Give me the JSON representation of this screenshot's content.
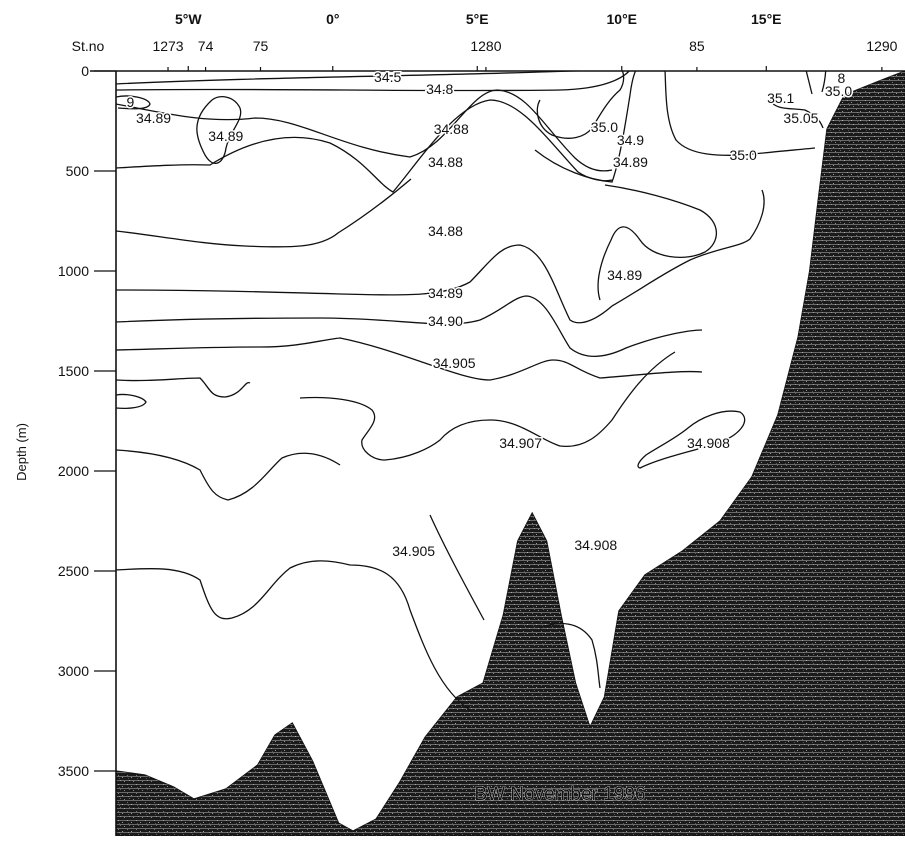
{
  "chart_data": {
    "type": "contour",
    "ylabel": "Depth (m)",
    "y_ticks": [
      0,
      500,
      1000,
      1500,
      2000,
      2500,
      3000,
      3500
    ],
    "y_range": [
      0,
      3800
    ],
    "x_ticks": [
      "5°W",
      "0°",
      "5°E",
      "10°E",
      "15°E"
    ],
    "x_tick_values": [
      -5,
      0,
      5,
      10,
      15
    ],
    "x_range": [
      -7.5,
      19.8
    ],
    "station_header": "St.no",
    "stations": [
      {
        "label": "1273",
        "lon": -5.7
      },
      {
        "label": "74",
        "lon": -4.4
      },
      {
        "label": "75",
        "lon": -2.5
      },
      {
        "label": "1280",
        "lon": 5.3
      },
      {
        "label": "85",
        "lon": 12.6
      },
      {
        "label": "1290",
        "lon": 19.0
      }
    ],
    "contour_labels": [
      {
        "text": "34.5",
        "lon": 1.9,
        "depth": 30
      },
      {
        "text": "34.8",
        "lon": 3.7,
        "depth": 90
      },
      {
        "text": "9",
        "lon": -7.0,
        "depth": 155
      },
      {
        "text": "34.89",
        "lon": -6.2,
        "depth": 235
      },
      {
        "text": "34.89",
        "lon": -3.7,
        "depth": 325
      },
      {
        "text": "34.88",
        "lon": 4.1,
        "depth": 290
      },
      {
        "text": "34.88",
        "lon": 3.9,
        "depth": 455
      },
      {
        "text": "35.0",
        "lon": 9.4,
        "depth": 280
      },
      {
        "text": "34.9",
        "lon": 10.3,
        "depth": 345
      },
      {
        "text": "34.89",
        "lon": 10.3,
        "depth": 455
      },
      {
        "text": "35.1",
        "lon": 15.5,
        "depth": 135
      },
      {
        "text": "35.05",
        "lon": 16.2,
        "depth": 235
      },
      {
        "text": "35.0",
        "lon": 14.2,
        "depth": 420
      },
      {
        "text": "35.0",
        "lon": 17.5,
        "depth": 100
      },
      {
        "text": "8",
        "lon": 17.6,
        "depth": 35
      },
      {
        "text": "34.88",
        "lon": 3.9,
        "depth": 800
      },
      {
        "text": "34.89",
        "lon": 10.1,
        "depth": 1020
      },
      {
        "text": "34.89",
        "lon": 3.9,
        "depth": 1110
      },
      {
        "text": "34.90",
        "lon": 3.9,
        "depth": 1250
      },
      {
        "text": "34.905",
        "lon": 4.2,
        "depth": 1460
      },
      {
        "text": "34.907",
        "lon": 6.5,
        "depth": 1860
      },
      {
        "text": "34.908",
        "lon": 13.0,
        "depth": 1860
      },
      {
        "text": "34.905",
        "lon": 2.8,
        "depth": 2400
      },
      {
        "text": "34.908",
        "lon": 9.1,
        "depth": 2370
      }
    ],
    "bottom_profile": [
      [
        -7.5,
        3500
      ],
      [
        -6.5,
        3520
      ],
      [
        -5.5,
        3580
      ],
      [
        -4.8,
        3640
      ],
      [
        -3.7,
        3590
      ],
      [
        -2.6,
        3470
      ],
      [
        -2.0,
        3320
      ],
      [
        -1.4,
        3260
      ],
      [
        -0.7,
        3450
      ],
      [
        0.2,
        3760
      ],
      [
        0.7,
        3800
      ],
      [
        1.5,
        3740
      ],
      [
        2.3,
        3560
      ],
      [
        3.2,
        3330
      ],
      [
        4.3,
        3130
      ],
      [
        5.2,
        3060
      ],
      [
        5.9,
        2720
      ],
      [
        6.4,
        2350
      ],
      [
        6.9,
        2210
      ],
      [
        7.4,
        2350
      ],
      [
        7.9,
        2720
      ],
      [
        8.4,
        3060
      ],
      [
        8.9,
        3280
      ],
      [
        9.4,
        3130
      ],
      [
        9.9,
        2700
      ],
      [
        10.8,
        2520
      ],
      [
        12.1,
        2400
      ],
      [
        13.4,
        2250
      ],
      [
        14.5,
        2030
      ],
      [
        15.4,
        1720
      ],
      [
        16.1,
        1330
      ],
      [
        16.5,
        1000
      ],
      [
        16.8,
        640
      ],
      [
        17.1,
        290
      ],
      [
        17.7,
        120
      ],
      [
        18.9,
        50
      ],
      [
        19.8,
        0
      ]
    ],
    "annotation": "BW November 1996"
  }
}
